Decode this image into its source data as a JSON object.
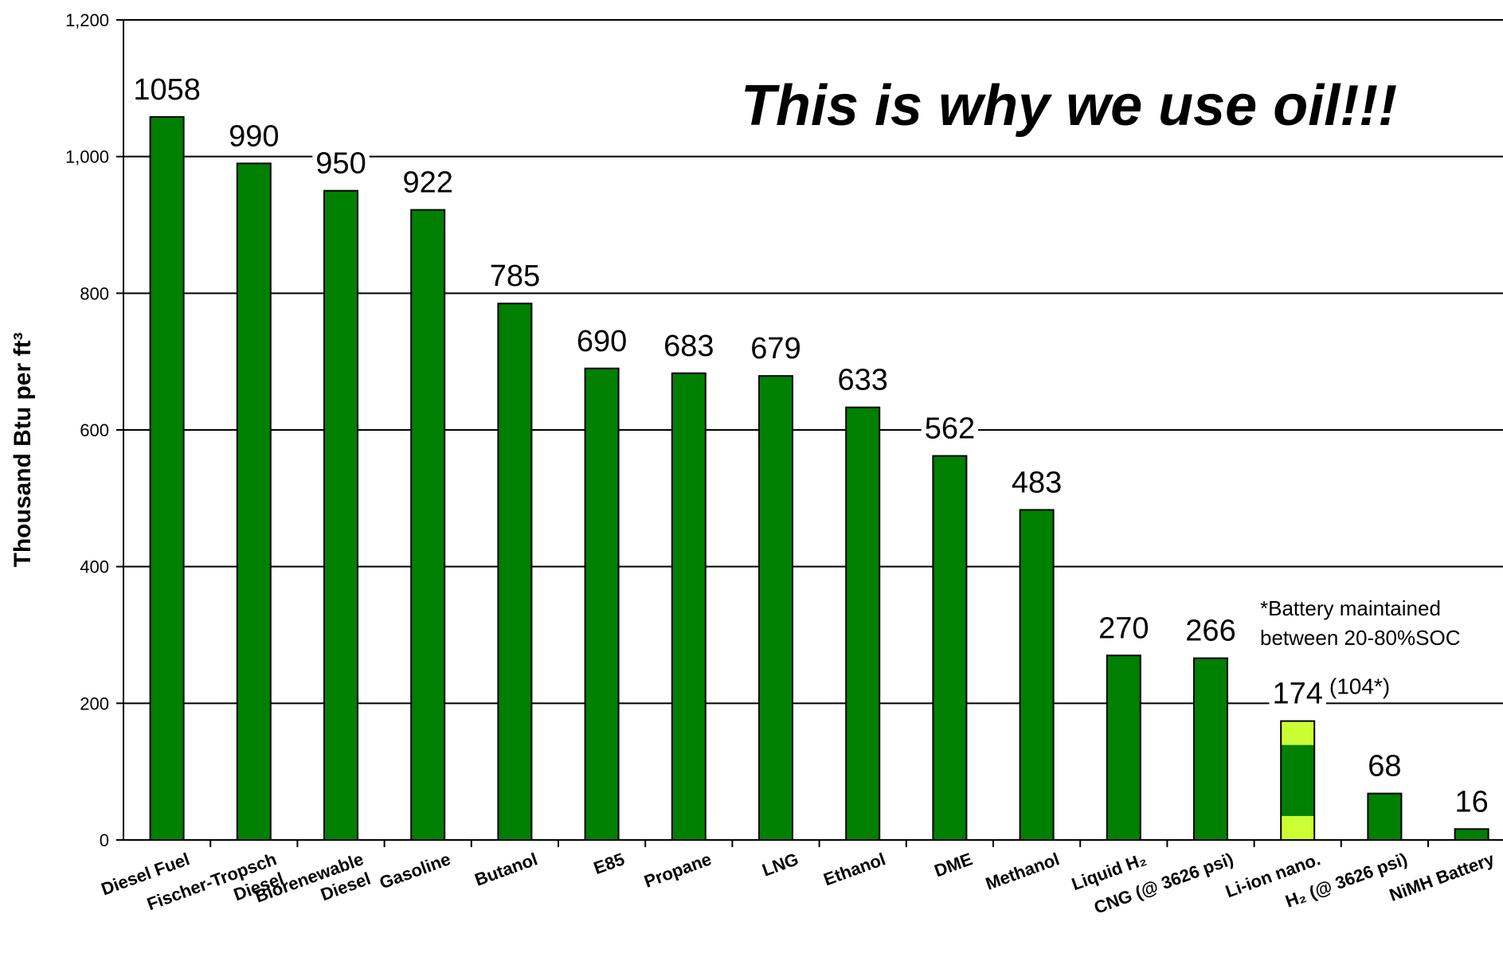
{
  "chart_data": {
    "type": "bar",
    "title": "",
    "annotation": "This is why we use oil!!!",
    "ylabel": "Thousand Btu per ft³",
    "xlabel": "",
    "ylim": [
      0,
      1200
    ],
    "yticks": [
      "0",
      "200",
      "400",
      "600",
      "800",
      "1,000",
      "1,200"
    ],
    "ytick_values": [
      0,
      200,
      400,
      600,
      800,
      1000,
      1200
    ],
    "grid": true,
    "bar_color": "#008000",
    "highlight_color": "#ccff33",
    "categories": [
      {
        "lines": [
          "Diesel Fuel"
        ],
        "value": 1058,
        "label": "1058"
      },
      {
        "lines": [
          "Fischer-Tropsch",
          "Diesel"
        ],
        "value": 990,
        "label": "990"
      },
      {
        "lines": [
          "Biorenewable",
          "Diesel"
        ],
        "value": 950,
        "label": "950"
      },
      {
        "lines": [
          "Gasoline"
        ],
        "value": 922,
        "label": "922"
      },
      {
        "lines": [
          "Butanol"
        ],
        "value": 785,
        "label": "785"
      },
      {
        "lines": [
          "E85"
        ],
        "value": 690,
        "label": "690"
      },
      {
        "lines": [
          "Propane"
        ],
        "value": 683,
        "label": "683"
      },
      {
        "lines": [
          "LNG"
        ],
        "value": 679,
        "label": "679"
      },
      {
        "lines": [
          "Ethanol"
        ],
        "value": 633,
        "label": "633"
      },
      {
        "lines": [
          "DME"
        ],
        "value": 562,
        "label": "562"
      },
      {
        "lines": [
          "Methanol"
        ],
        "value": 483,
        "label": "483"
      },
      {
        "lines": [
          "Liquid H₂"
        ],
        "value": 270,
        "label": "270"
      },
      {
        "lines": [
          "CNG (@ 3626 psi)"
        ],
        "value": 266,
        "label": "266"
      },
      {
        "lines": [
          "Li-ion nano."
        ],
        "value": 174,
        "label": "174",
        "extra_label": "(104*)",
        "usable_value": 104
      },
      {
        "lines": [
          "H₂ (@ 3626 psi)"
        ],
        "value": 68,
        "label": "68"
      },
      {
        "lines": [
          "NiMH Battery"
        ],
        "value": 16,
        "label": "16"
      }
    ],
    "footnote": [
      "*Battery maintained",
      "between 20-80%SOC"
    ]
  }
}
